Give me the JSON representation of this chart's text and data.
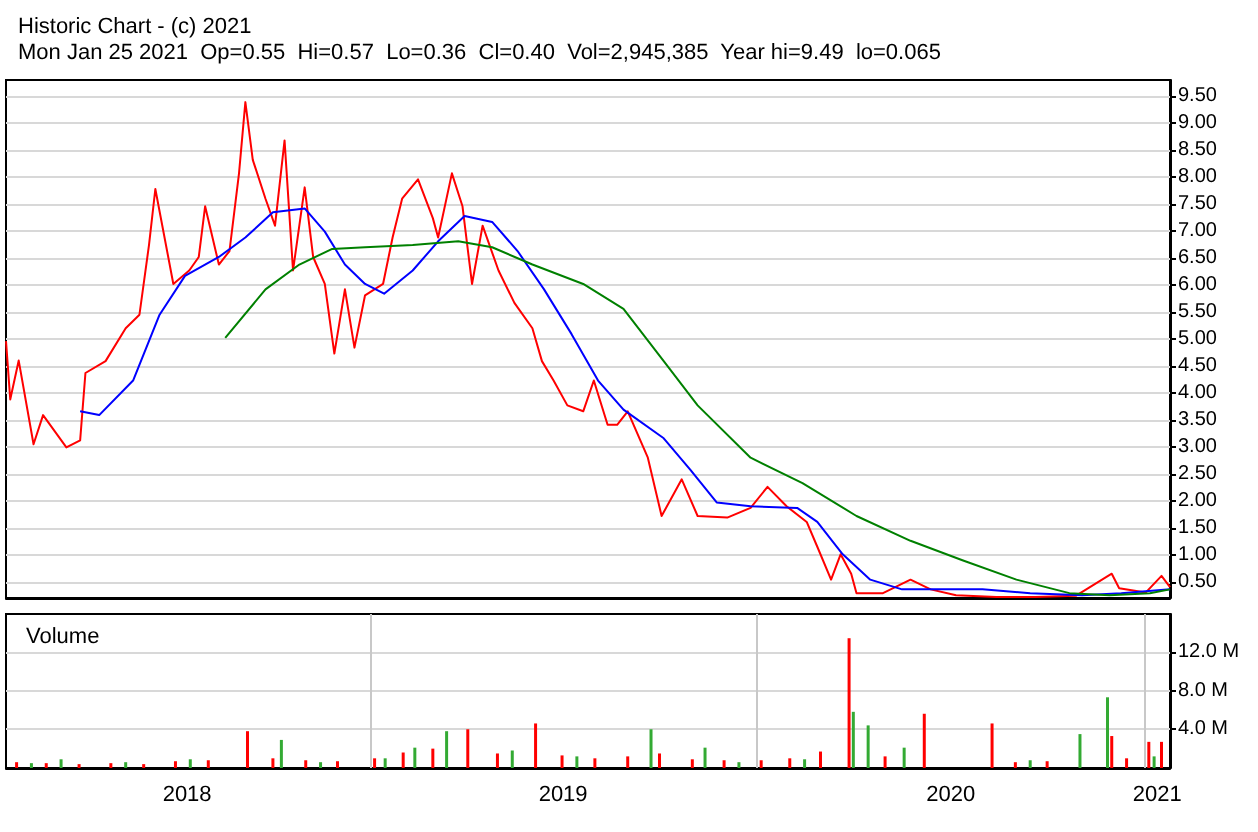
{
  "chart_data": [
    {
      "type": "line",
      "title": "Historic Chart - (c) 2021",
      "subtitle": "Mon Jan 25 2021  Op=0.55  Hi=0.57  Lo=0.36  Cl=0.40  Vol=2,945,385  Year hi=9.49  lo=0.065",
      "marker": "none",
      "grid": "y",
      "tick_labels": "y",
      "xlim": [
        "2018-01-22",
        "2021-01-25"
      ],
      "ylim": [
        0.2,
        9.8
      ],
      "yticks": [
        {
          "value": 0.5,
          "label": "0.50"
        },
        {
          "value": 1,
          "label": "1.00"
        },
        {
          "value": 1.5,
          "label": "1.50"
        },
        {
          "value": 2,
          "label": "2.00"
        },
        {
          "value": 2.5,
          "label": "2.50"
        },
        {
          "value": 3,
          "label": "3.00"
        },
        {
          "value": 3.5,
          "label": "3.50"
        },
        {
          "value": 4,
          "label": "4.00"
        },
        {
          "value": 4.5,
          "label": "4.50"
        },
        {
          "value": 5,
          "label": "5.00"
        },
        {
          "value": 5.5,
          "label": "5.50"
        },
        {
          "value": 6,
          "label": "6.00"
        },
        {
          "value": 6.5,
          "label": "6.50"
        },
        {
          "value": 7,
          "label": "7.00"
        },
        {
          "value": 7.5,
          "label": "7.50"
        },
        {
          "value": 8,
          "label": "8.00"
        },
        {
          "value": 8.5,
          "label": "8.50"
        },
        {
          "value": 9,
          "label": "9.00"
        },
        {
          "value": 9.5,
          "label": "9.50"
        }
      ],
      "series": [
        {
          "color": "#ff0000",
          "x": [
            "2018-01-22",
            "2018-01-26",
            "2018-02-03",
            "2018-02-17",
            "2018-02-26",
            "2018-03-20",
            "2018-04-02",
            "2018-04-07",
            "2018-04-26",
            "2018-05-15",
            "2018-05-28",
            "2018-06-06",
            "2018-06-12",
            "2018-06-29",
            "2018-07-14",
            "2018-07-23",
            "2018-07-29",
            "2018-08-11",
            "2018-08-21",
            "2018-08-30",
            "2018-09-05",
            "2018-09-12",
            "2018-09-24",
            "2018-10-03",
            "2018-10-12",
            "2018-10-20",
            "2018-10-31",
            "2018-11-08",
            "2018-11-19",
            "2018-11-28",
            "2018-12-08",
            "2018-12-17",
            "2018-12-27",
            "2019-01-13",
            "2019-01-22",
            "2019-01-31",
            "2019-02-15",
            "2019-03-01",
            "2019-03-06",
            "2019-03-19",
            "2019-03-29",
            "2019-04-07",
            "2019-04-17",
            "2019-05-02",
            "2019-05-17",
            "2019-06-03",
            "2019-06-12",
            "2019-06-23",
            "2019-07-06",
            "2019-07-21",
            "2019-07-31",
            "2019-08-13",
            "2019-08-22",
            "2019-09-01",
            "2019-09-20",
            "2019-10-03",
            "2019-10-22",
            "2019-11-06",
            "2019-12-04",
            "2019-12-26",
            "2020-01-11",
            "2020-01-29",
            "2020-02-17",
            "2020-02-27",
            "2020-03-11",
            "2020-03-20",
            "2020-03-30",
            "2020-04-04",
            "2020-04-29",
            "2020-05-25",
            "2020-06-13",
            "2020-07-07",
            "2020-08-14",
            "2020-09-20",
            "2020-10-28",
            "2020-12-01",
            "2020-12-08",
            "2021-01-02",
            "2021-01-17",
            "2021-01-25"
          ],
          "values": [
            4.96,
            3.88,
            4.6,
            3.05,
            3.59,
            2.99,
            3.12,
            4.37,
            4.59,
            5.2,
            5.45,
            6.74,
            7.78,
            6.02,
            6.27,
            6.52,
            7.46,
            6.38,
            6.63,
            8.07,
            9.39,
            8.32,
            7.6,
            7.1,
            8.68,
            6.27,
            7.81,
            6.52,
            6.02,
            4.73,
            5.92,
            4.84,
            5.81,
            6.02,
            6.88,
            7.6,
            7.96,
            7.24,
            6.88,
            8.07,
            7.46,
            6.02,
            7.1,
            6.27,
            5.67,
            5.2,
            4.59,
            4.23,
            3.77,
            3.66,
            4.23,
            3.41,
            3.41,
            3.66,
            2.8,
            1.72,
            2.4,
            1.72,
            1.69,
            1.87,
            2.26,
            1.9,
            1.61,
            1.15,
            0.54,
            1.01,
            0.65,
            0.29,
            0.29,
            0.54,
            0.36,
            0.25,
            0.22,
            0.22,
            0.24,
            0.65,
            0.38,
            0.3,
            0.61,
            0.4
          ]
        },
        {
          "color": "#0000ff",
          "x": [
            "2018-04-02",
            "2018-04-20",
            "2018-05-22",
            "2018-06-16",
            "2018-07-10",
            "2018-08-11",
            "2018-09-05",
            "2018-10-01",
            "2018-10-31",
            "2018-11-19",
            "2018-12-08",
            "2018-12-27",
            "2019-01-14",
            "2019-02-10",
            "2019-03-06",
            "2019-03-31",
            "2019-04-26",
            "2019-05-20",
            "2019-06-14",
            "2019-07-10",
            "2019-08-04",
            "2019-08-28",
            "2019-10-05",
            "2019-10-30",
            "2019-11-24",
            "2019-12-26",
            "2020-02-08",
            "2020-02-27",
            "2020-03-22",
            "2020-04-17",
            "2020-05-17",
            "2020-08-01",
            "2020-09-15",
            "2020-11-03",
            "2020-12-10",
            "2021-01-25"
          ],
          "values": [
            3.66,
            3.59,
            4.23,
            5.45,
            6.17,
            6.52,
            6.88,
            7.35,
            7.42,
            6.99,
            6.38,
            6.02,
            5.84,
            6.27,
            6.81,
            7.28,
            7.17,
            6.63,
            5.92,
            5.09,
            4.23,
            3.69,
            3.16,
            2.58,
            1.97,
            1.9,
            1.87,
            1.61,
            1.01,
            0.54,
            0.36,
            0.36,
            0.29,
            0.25,
            0.29,
            0.36
          ]
        },
        {
          "color": "#008000",
          "x": [
            "2018-08-17",
            "2018-09-24",
            "2018-10-26",
            "2018-11-26",
            "2018-12-27",
            "2019-02-10",
            "2019-03-25",
            "2019-04-26",
            "2019-06-03",
            "2019-07-21",
            "2019-08-28",
            "2019-10-05",
            "2019-11-06",
            "2019-12-26",
            "2020-02-13",
            "2020-04-04",
            "2020-05-25",
            "2020-07-13",
            "2020-09-02",
            "2020-10-22",
            "2020-11-29",
            "2021-01-06",
            "2021-01-25"
          ],
          "values": [
            5.02,
            5.92,
            6.38,
            6.67,
            6.7,
            6.74,
            6.81,
            6.7,
            6.38,
            6.02,
            5.56,
            4.59,
            3.77,
            2.8,
            2.33,
            1.72,
            1.26,
            0.9,
            0.54,
            0.29,
            0.25,
            0.29,
            0.36
          ]
        }
      ]
    },
    {
      "type": "bar",
      "title": "Volume",
      "grid": "y",
      "xlim": [
        "2018-01-22",
        "2021-01-25"
      ],
      "ylim": [
        0,
        15.9
      ],
      "yticks": [
        {
          "value": 4,
          "label": "4.0 M"
        },
        {
          "value": 8,
          "label": "8.0 M"
        },
        {
          "value": 12,
          "label": "12.0 M"
        }
      ],
      "xticks": [
        {
          "value": "2018-07-12",
          "label": "2018"
        },
        {
          "value": "2019-07-02",
          "label": "2019"
        },
        {
          "value": "2020-07-02",
          "label": "2020"
        },
        {
          "value": "2021-01-13",
          "label": "2021"
        }
      ],
      "ref_lines": [
        {
          "axis": "x",
          "value": "2019-01-01",
          "color": "#c8c8c8"
        },
        {
          "axis": "x",
          "value": "2020-01-01",
          "color": "#c8c8c8"
        },
        {
          "axis": "x",
          "value": "2021-01-01",
          "color": "#c8c8c8"
        }
      ],
      "series": [
        {
          "color": "#ff0000",
          "x": [
            "2018-02-01",
            "2018-03-01",
            "2018-04-01",
            "2018-05-01",
            "2018-06-01",
            "2018-07-01",
            "2018-08-01",
            "2018-09-07",
            "2018-10-01",
            "2018-11-01",
            "2018-12-01",
            "2019-01-05",
            "2019-02-01",
            "2019-03-01",
            "2019-04-03",
            "2019-05-01",
            "2019-06-06",
            "2019-07-01",
            "2019-08-01",
            "2019-09-01",
            "2019-10-01",
            "2019-11-01",
            "2019-12-01",
            "2020-01-05",
            "2020-02-01",
            "2020-03-01",
            "2020-03-28",
            "2020-05-01",
            "2020-06-07",
            "2020-08-10",
            "2020-09-01",
            "2020-10-01",
            "2020-12-01",
            "2020-12-15",
            "2021-01-05",
            "2021-01-17"
          ],
          "values": [
            0.6,
            0.5,
            0.4,
            0.5,
            0.4,
            0.7,
            0.8,
            3.8,
            1.0,
            0.8,
            0.7,
            1.0,
            1.6,
            2.0,
            4.0,
            1.5,
            4.6,
            1.3,
            1.0,
            1.2,
            1.5,
            0.9,
            0.8,
            0.8,
            1.0,
            1.7,
            13.4,
            1.2,
            5.6,
            4.6,
            0.6,
            0.7,
            3.3,
            1.0,
            2.7,
            2.7
          ]
        },
        {
          "color": "#33aa33",
          "x": [
            "2018-02-15",
            "2018-03-15",
            "2018-05-15",
            "2018-07-15",
            "2018-10-09",
            "2018-11-15",
            "2019-01-15",
            "2019-02-12",
            "2019-03-14",
            "2019-05-15",
            "2019-07-15",
            "2019-09-23",
            "2019-11-13",
            "2019-12-15",
            "2020-02-15",
            "2020-04-01",
            "2020-04-15",
            "2020-05-19",
            "2020-09-15",
            "2020-11-01",
            "2020-11-27",
            "2021-01-10"
          ],
          "values": [
            0.5,
            0.9,
            0.6,
            0.9,
            2.9,
            0.6,
            1.0,
            2.1,
            3.8,
            1.8,
            1.2,
            4.0,
            2.1,
            0.6,
            0.9,
            5.8,
            4.4,
            2.1,
            0.8,
            3.5,
            7.3,
            1.2
          ]
        }
      ]
    }
  ]
}
